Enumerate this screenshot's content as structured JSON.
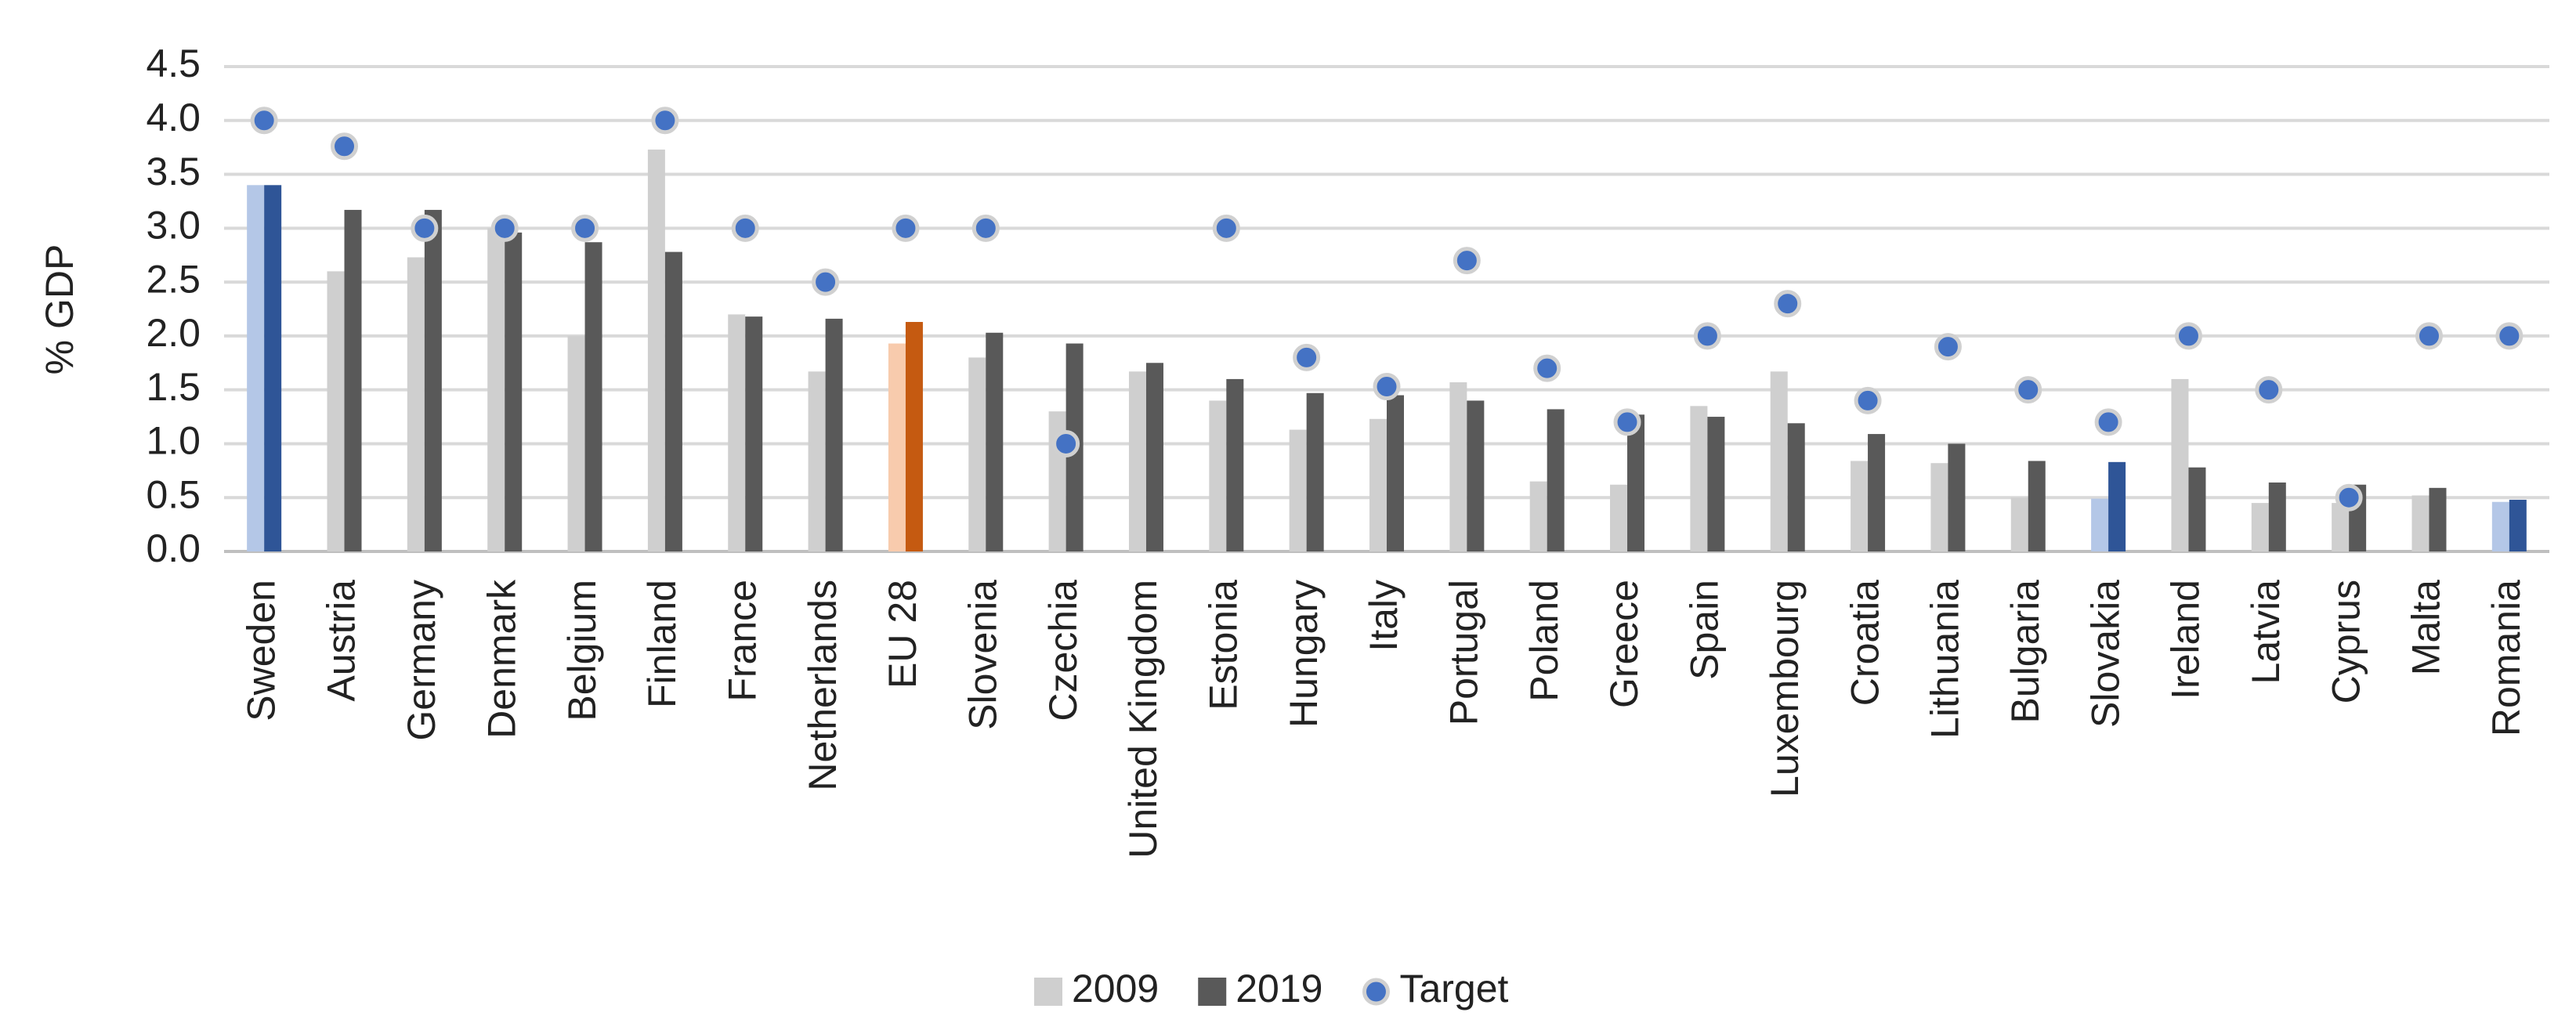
{
  "chart_data": {
    "type": "bar",
    "y_label": "% GDP",
    "categories": [
      "Sweden",
      "Austria",
      "Germany",
      "Denmark",
      "Belgium",
      "Finland",
      "France",
      "Netherlands",
      "EU 28",
      "Slovenia",
      "Czechia",
      "United Kingdom",
      "Estonia",
      "Hungary",
      "Italy",
      "Portugal",
      "Poland",
      "Greece",
      "Spain",
      "Luxembourg",
      "Croatia",
      "Lithuania",
      "Bulgaria",
      "Slovakia",
      "Ireland",
      "Latvia",
      "Cyprus",
      "Malta",
      "Romania"
    ],
    "series": [
      {
        "name": "2009",
        "type": "bar",
        "color": "#cfcfcf",
        "colors": [
          "#b4c7e7",
          "#cfcfcf",
          "#cfcfcf",
          "#cfcfcf",
          "#cfcfcf",
          "#cfcfcf",
          "#cfcfcf",
          "#cfcfcf",
          "#f8cbad",
          "#cfcfcf",
          "#cfcfcf",
          "#cfcfcf",
          "#cfcfcf",
          "#cfcfcf",
          "#cfcfcf",
          "#cfcfcf",
          "#cfcfcf",
          "#cfcfcf",
          "#cfcfcf",
          "#cfcfcf",
          "#cfcfcf",
          "#cfcfcf",
          "#cfcfcf",
          "#b4c7e7",
          "#cfcfcf",
          "#cfcfcf",
          "#cfcfcf",
          "#cfcfcf",
          "#b4c7e7"
        ],
        "values": [
          3.4,
          2.6,
          2.73,
          3.0,
          2.0,
          3.73,
          2.2,
          1.67,
          1.93,
          1.8,
          1.3,
          1.67,
          1.4,
          1.13,
          1.23,
          1.57,
          0.65,
          0.62,
          1.35,
          1.67,
          0.84,
          0.82,
          0.5,
          0.49,
          1.6,
          0.45,
          0.45,
          0.52,
          0.46
        ]
      },
      {
        "name": "2019",
        "type": "bar",
        "color": "#595959",
        "colors": [
          "#2f5597",
          "#595959",
          "#595959",
          "#595959",
          "#595959",
          "#595959",
          "#595959",
          "#595959",
          "#c55a11",
          "#595959",
          "#595959",
          "#595959",
          "#595959",
          "#595959",
          "#595959",
          "#595959",
          "#595959",
          "#595959",
          "#595959",
          "#595959",
          "#595959",
          "#595959",
          "#595959",
          "#2f5597",
          "#595959",
          "#595959",
          "#595959",
          "#595959",
          "#2f5597"
        ],
        "values": [
          3.4,
          3.17,
          3.17,
          2.96,
          2.87,
          2.78,
          2.18,
          2.16,
          2.13,
          2.03,
          1.93,
          1.75,
          1.6,
          1.47,
          1.45,
          1.4,
          1.32,
          1.27,
          1.25,
          1.19,
          1.09,
          1.0,
          0.84,
          0.83,
          0.78,
          0.64,
          0.62,
          0.59,
          0.48
        ]
      },
      {
        "name": "Target",
        "type": "scatter",
        "color": "#4472c4",
        "values": [
          4.0,
          3.76,
          3.0,
          3.0,
          3.0,
          4.0,
          3.0,
          2.5,
          3.0,
          3.0,
          1.0,
          null,
          3.0,
          1.8,
          1.53,
          2.7,
          1.7,
          1.2,
          2.0,
          2.3,
          1.4,
          1.9,
          1.5,
          1.2,
          2.0,
          1.5,
          0.5,
          2.0,
          2.0
        ]
      }
    ],
    "ylim": [
      0,
      4.5
    ],
    "yticks": [
      {
        "value": 0,
        "label": "0.0"
      },
      0.5,
      {
        "value": 1,
        "label": "1.0"
      },
      1.5,
      {
        "value": 2,
        "label": "2.0"
      },
      2.5,
      {
        "value": 3,
        "label": "3.0"
      },
      3.5,
      {
        "value": 4,
        "label": "4.0"
      },
      4.5
    ],
    "grid": true
  }
}
